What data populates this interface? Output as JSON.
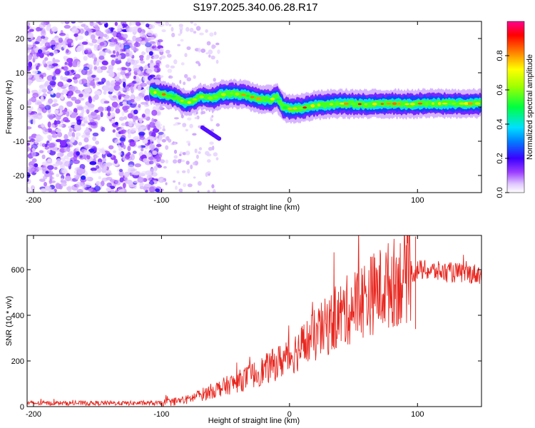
{
  "title": "S197.2025.340.06.28.R17",
  "chart_data": [
    {
      "type": "heatmap",
      "xlabel": "Height of straight line (km)",
      "ylabel": "Frequency (Hz)",
      "xlim": [
        -205,
        150
      ],
      "ylim": [
        -25,
        25
      ],
      "xticks": [
        -200,
        -100,
        0,
        100
      ],
      "yticks": [
        -20,
        -10,
        0,
        10,
        20
      ],
      "colorbar": {
        "label": "Normalized spectral amplitude",
        "range": [
          0.0,
          1.0
        ],
        "ticks": [
          0.0,
          0.2,
          0.4,
          0.6,
          0.8
        ]
      },
      "ridge": {
        "description_points_x": [
          -108,
          -90,
          -80,
          -70,
          -60,
          -55,
          -45,
          -35,
          -25,
          -15,
          -10,
          -5,
          0,
          10,
          20,
          40,
          60,
          80,
          95,
          100,
          120,
          150
        ],
        "description_points_freq": [
          4.5,
          3.0,
          1.0,
          3.0,
          2.5,
          3.5,
          4.0,
          3.5,
          2.5,
          2.0,
          3.0,
          0,
          -0.5,
          -0.3,
          0.5,
          1.0,
          0.8,
          1.0,
          0.8,
          1.0,
          1.0,
          1.0
        ]
      }
    },
    {
      "type": "line",
      "xlabel": "Height of straight line (km)",
      "ylabel": "SNR (10 * v/v)",
      "xlim": [
        -205,
        150
      ],
      "ylim": [
        0,
        750
      ],
      "xticks": [
        -200,
        -100,
        0,
        100
      ],
      "yticks": [
        0,
        200,
        400,
        600
      ],
      "color": "#e8261e",
      "trend_x": [
        -205,
        -150,
        -100,
        -80,
        -60,
        -40,
        -20,
        0,
        20,
        40,
        60,
        80,
        95,
        100,
        120,
        150
      ],
      "trend_y": [
        15,
        15,
        15,
        30,
        70,
        110,
        160,
        220,
        310,
        400,
        480,
        540,
        580,
        600,
        590,
        580
      ]
    }
  ]
}
